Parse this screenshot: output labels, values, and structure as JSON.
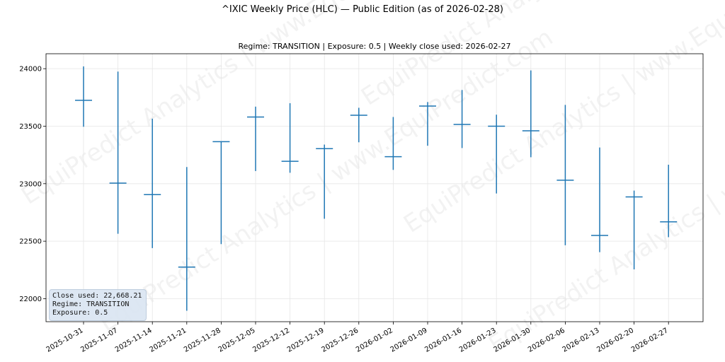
{
  "header": {
    "title": "^IXIC Weekly Price (HLC) — Public Edition (as of 2026-02-28)",
    "subtitle": "Regime: TRANSITION | Exposure: 0.5 | Weekly close used: 2026-02-27"
  },
  "watermark": {
    "text": "EquiPredict Analytics | www.EquiPredict.com"
  },
  "info_box": {
    "close_line": "Close used: 22,668.21",
    "regime_line": "Regime: TRANSITION",
    "exposure_line": "Exposure: 0.5"
  },
  "colors": {
    "series": "#1f77b4",
    "grid": "#e6e6e6"
  },
  "chart_data": {
    "type": "hlc",
    "title": "^IXIC Weekly Price (HLC) — Public Edition (as of 2026-02-28)",
    "subtitle": "Regime: TRANSITION | Exposure: 0.5 | Weekly close used: 2026-02-27",
    "xlabel": "",
    "ylabel": "",
    "ylim": [
      21800,
      24130
    ],
    "yticks": [
      22000,
      22500,
      23000,
      23500,
      24000
    ],
    "grid": true,
    "categories": [
      "2025-10-31",
      "2025-11-07",
      "2025-11-14",
      "2025-11-21",
      "2025-11-28",
      "2025-12-05",
      "2025-12-12",
      "2025-12-19",
      "2025-12-26",
      "2026-01-02",
      "2026-01-09",
      "2026-01-16",
      "2026-01-23",
      "2026-01-30",
      "2026-02-06",
      "2026-02-13",
      "2026-02-20",
      "2026-02-27"
    ],
    "series": [
      {
        "high": [
          24020,
          23975,
          23565,
          23145,
          23365,
          23670,
          23700,
          23340,
          23660,
          23580,
          23710,
          23815,
          23600,
          23985,
          23685,
          23315,
          22940,
          23165
        ],
        "low": [
          23495,
          22565,
          22440,
          21895,
          22475,
          23110,
          23095,
          22695,
          23360,
          23120,
          23330,
          23310,
          22915,
          23230,
          22465,
          22405,
          22255,
          22535
        ],
        "close": [
          23725,
          23005,
          22905,
          22275,
          23365,
          23580,
          23195,
          23305,
          23595,
          23235,
          23675,
          23515,
          23500,
          23460,
          23030,
          22550,
          22885,
          22668.21
        ]
      }
    ]
  }
}
